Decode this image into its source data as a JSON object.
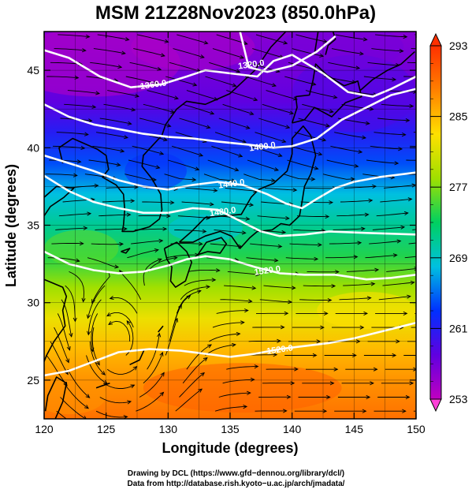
{
  "chart_data": {
    "type": "heatmap",
    "title": "MSM 21Z28Nov2023 (850.0hPa)",
    "xlabel": "Longitude (degrees)",
    "ylabel": "Latitude  (degrees)",
    "xlim": [
      120,
      150
    ],
    "ylim": [
      22.5,
      47.5
    ],
    "x_ticks": [
      120,
      125,
      130,
      135,
      140,
      145,
      150
    ],
    "y_ticks": [
      25,
      30,
      35,
      40,
      45
    ],
    "grid": true,
    "colorbar": {
      "min": 253,
      "max": 293,
      "ticks": [
        253,
        261,
        269,
        277,
        285,
        293
      ],
      "colors": [
        "#c000c0",
        "#6000e0",
        "#0030ff",
        "#00c0e0",
        "#00d060",
        "#a0e000",
        "#ffe000",
        "#ff8000",
        "#ff3000"
      ]
    },
    "contours": [
      {
        "label": "1320.0",
        "points": [
          [
            135.8,
            47.5
          ],
          [
            136.5,
            45.2
          ],
          [
            138,
            44.9
          ],
          [
            140,
            45.3
          ],
          [
            142,
            46.2
          ],
          [
            143.5,
            47.2
          ]
        ]
      },
      {
        "label": "1360.0",
        "points": [
          [
            120,
            46.3
          ],
          [
            122,
            45.8
          ],
          [
            124.5,
            44.6
          ],
          [
            127,
            43.9
          ],
          [
            129.5,
            44.1
          ],
          [
            131.5,
            44.6
          ],
          [
            133,
            45
          ],
          [
            135,
            44.8
          ],
          [
            137.2,
            44.6
          ],
          [
            138.5,
            45.6
          ],
          [
            140,
            46
          ],
          [
            142.5,
            44.8
          ],
          [
            144.5,
            43.6
          ],
          [
            146.5,
            43.3
          ],
          [
            148,
            43.8
          ],
          [
            149.5,
            44.4
          ],
          [
            150,
            44.6
          ]
        ]
      },
      {
        "label": "1400.0",
        "points": [
          [
            120,
            42.8
          ],
          [
            122,
            42
          ],
          [
            124,
            41.5
          ],
          [
            126,
            41.2
          ],
          [
            128,
            40.9
          ],
          [
            130,
            40.7
          ],
          [
            132,
            40.6
          ],
          [
            134,
            40.4
          ],
          [
            136.5,
            40.2
          ],
          [
            138.5,
            40
          ],
          [
            140,
            40.1
          ],
          [
            142,
            40.6
          ],
          [
            144,
            41.8
          ],
          [
            146,
            42.6
          ],
          [
            148,
            43.4
          ],
          [
            150,
            43.8
          ]
        ]
      },
      {
        "label": "1440.0",
        "points": [
          [
            120,
            39.5
          ],
          [
            122,
            39
          ],
          [
            124,
            38.5
          ],
          [
            126,
            37.9
          ],
          [
            128,
            37.5
          ],
          [
            130,
            37.3
          ],
          [
            132,
            37.6
          ],
          [
            134,
            37.8
          ],
          [
            136,
            37.6
          ],
          [
            138,
            37
          ],
          [
            139.5,
            36.4
          ],
          [
            140.8,
            36.1
          ],
          [
            142,
            36.7
          ],
          [
            143.5,
            37.4
          ],
          [
            145,
            37.8
          ],
          [
            147,
            38.1
          ],
          [
            150,
            38.4
          ]
        ]
      },
      {
        "label": "1480.0",
        "points": [
          [
            120,
            38.2
          ],
          [
            122,
            37.2
          ],
          [
            124,
            36.5
          ],
          [
            126,
            36.1
          ],
          [
            128,
            35.8
          ],
          [
            130,
            35.8
          ],
          [
            132,
            36.1
          ],
          [
            134,
            36
          ],
          [
            136,
            35.2
          ],
          [
            137.5,
            34.6
          ],
          [
            139,
            34.3
          ],
          [
            141,
            34.4
          ],
          [
            143,
            34.6
          ],
          [
            146,
            34.5
          ],
          [
            150,
            34.4
          ]
        ]
      },
      {
        "label": "1520.0",
        "points": [
          [
            120,
            33.3
          ],
          [
            122,
            32.5
          ],
          [
            124,
            32.1
          ],
          [
            126,
            31.9
          ],
          [
            128,
            32
          ],
          [
            130,
            32.4
          ],
          [
            131.5,
            32.8
          ],
          [
            133,
            33
          ],
          [
            135,
            32.8
          ],
          [
            137,
            32.3
          ],
          [
            139,
            31.9
          ],
          [
            141,
            31.8
          ],
          [
            143.5,
            31.8
          ],
          [
            146,
            31.5
          ],
          [
            148,
            31.6
          ],
          [
            150,
            31.8
          ]
        ]
      },
      {
        "label": "1520.0",
        "points": [
          [
            120,
            25.3
          ],
          [
            122,
            25.6
          ],
          [
            124,
            26.2
          ],
          [
            126,
            26.8
          ],
          [
            128.5,
            27
          ],
          [
            131,
            26.9
          ],
          [
            133,
            26.7
          ],
          [
            135,
            26.5
          ],
          [
            137,
            26.7
          ],
          [
            139,
            27
          ],
          [
            141,
            27.2
          ],
          [
            143,
            27.4
          ],
          [
            145,
            27.7
          ],
          [
            147.5,
            28.2
          ],
          [
            150,
            28.7
          ]
        ]
      }
    ],
    "contour_label_positions": [
      {
        "label": "1320.0",
        "lon": 136.7,
        "lat": 45.4
      },
      {
        "label": "1360.0",
        "lon": 128.8,
        "lat": 44.1
      },
      {
        "label": "1400.0",
        "lon": 137.6,
        "lat": 40.1
      },
      {
        "label": "1440.0",
        "lon": 135.1,
        "lat": 37.7
      },
      {
        "label": "1480.0",
        "lon": 134.4,
        "lat": 35.9
      },
      {
        "label": "1520.0",
        "lon": 138,
        "lat": 32.1
      },
      {
        "label": "1520.0",
        "lon": 139,
        "lat": 27
      }
    ],
    "temperature_bands_by_latitude": [
      {
        "lat": 47.5,
        "value": 256
      },
      {
        "lat": 45,
        "value": 257
      },
      {
        "lat": 43,
        "value": 258
      },
      {
        "lat": 41,
        "value": 261
      },
      {
        "lat": 39,
        "value": 264
      },
      {
        "lat": 37,
        "value": 268
      },
      {
        "lat": 35,
        "value": 271
      },
      {
        "lat": 33,
        "value": 274
      },
      {
        "lat": 31,
        "value": 278
      },
      {
        "lat": 29,
        "value": 282
      },
      {
        "lat": 27,
        "value": 285
      },
      {
        "lat": 25,
        "value": 287
      },
      {
        "lat": 22.5,
        "value": 289
      }
    ]
  },
  "credits": {
    "line1": "Drawing by DCL (https://www.gfd−dennou.org/library/dcl/)",
    "line2": "Data from http://database.rish.kyoto−u.ac.jp/arch/jmadata/"
  }
}
